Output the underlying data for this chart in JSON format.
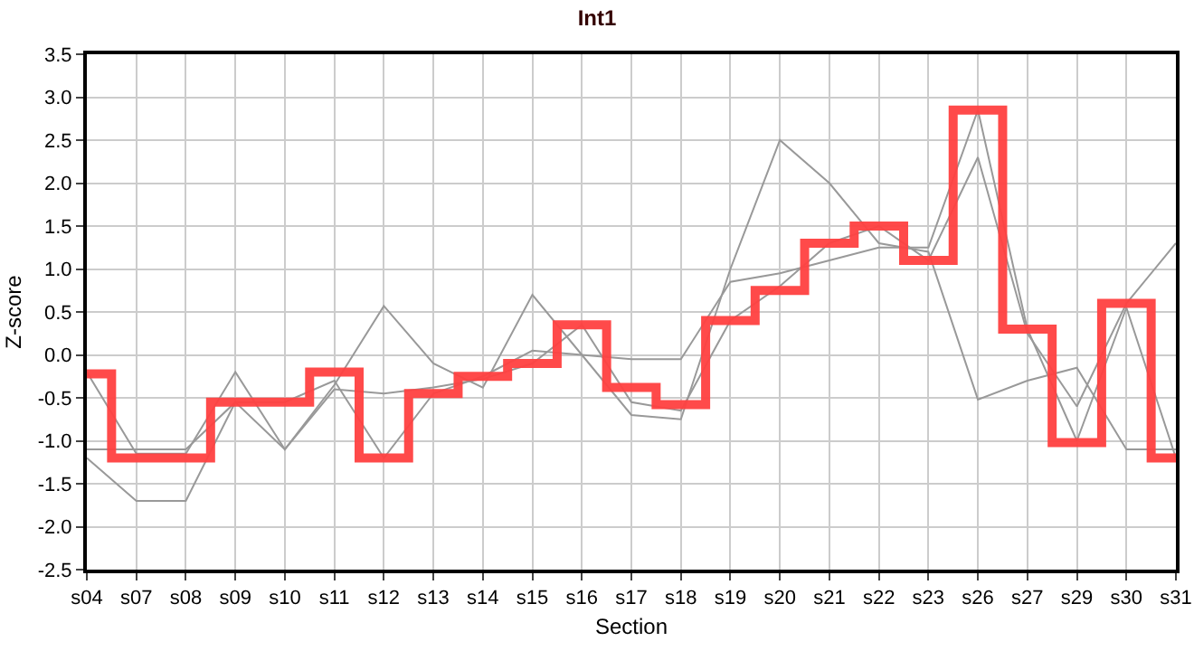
{
  "chart_data": {
    "type": "line",
    "title": "Int1",
    "xlabel": "Section",
    "ylabel": "Z-score",
    "categories": [
      "s04",
      "s07",
      "s08",
      "s09",
      "s10",
      "s11",
      "s12",
      "s13",
      "s14",
      "s15",
      "s16",
      "s17",
      "s18",
      "s19",
      "s20",
      "s21",
      "s22",
      "s23",
      "s26",
      "s27",
      "s29",
      "s30",
      "s31"
    ],
    "series": [
      {
        "color": "#999999",
        "values": [
          -0.2,
          -1.15,
          -1.15,
          -0.2,
          -1.1,
          -0.35,
          0.57,
          -0.1,
          -0.38,
          0.7,
          0.0,
          -0.7,
          -0.75,
          1.0,
          2.5,
          2.0,
          1.3,
          1.2,
          -0.52,
          -0.3,
          -0.15,
          -1.1,
          -1.1
        ]
      },
      {
        "color": "#999999",
        "values": [
          -1.2,
          -1.7,
          -1.7,
          -0.55,
          -0.55,
          -0.3,
          -1.2,
          -0.45,
          -0.25,
          0.05,
          0.0,
          -0.05,
          -0.05,
          0.85,
          0.95,
          1.1,
          1.25,
          1.25,
          2.85,
          0.3,
          -1.0,
          0.55,
          -1.2
        ]
      },
      {
        "color": "#999999",
        "values": [
          -1.1,
          -1.1,
          -1.1,
          -0.55,
          -1.1,
          -0.4,
          -0.45,
          -0.38,
          -0.28,
          -0.1,
          0.35,
          -0.55,
          -0.65,
          0.4,
          0.8,
          1.3,
          1.5,
          1.1,
          2.3,
          0.25,
          -0.6,
          0.6,
          1.3
        ]
      },
      {
        "type": "step",
        "color": "#ff4040",
        "values": [
          -0.22,
          -1.2,
          -1.2,
          -0.55,
          -0.55,
          -0.2,
          -1.2,
          -0.45,
          -0.25,
          -0.1,
          0.35,
          -0.38,
          -0.58,
          0.4,
          0.75,
          1.3,
          1.5,
          1.1,
          2.85,
          0.3,
          -1.02,
          0.6,
          -1.2
        ]
      }
    ],
    "ylim": [
      -2.5,
      3.5
    ],
    "yticks": [
      -2.5,
      {
        "value": -2,
        "label": "-2.0"
      },
      -1.5,
      {
        "value": -1,
        "label": "-1.0"
      },
      -0.5,
      {
        "value": 0,
        "label": "0.0"
      },
      0.5,
      {
        "value": 1,
        "label": "1.0"
      },
      1.5,
      {
        "value": 2,
        "label": "2.0"
      },
      2.5,
      {
        "value": 3,
        "label": "3.0"
      },
      3.5
    ],
    "grid": true,
    "marker": "none",
    "line_style": "solid"
  }
}
